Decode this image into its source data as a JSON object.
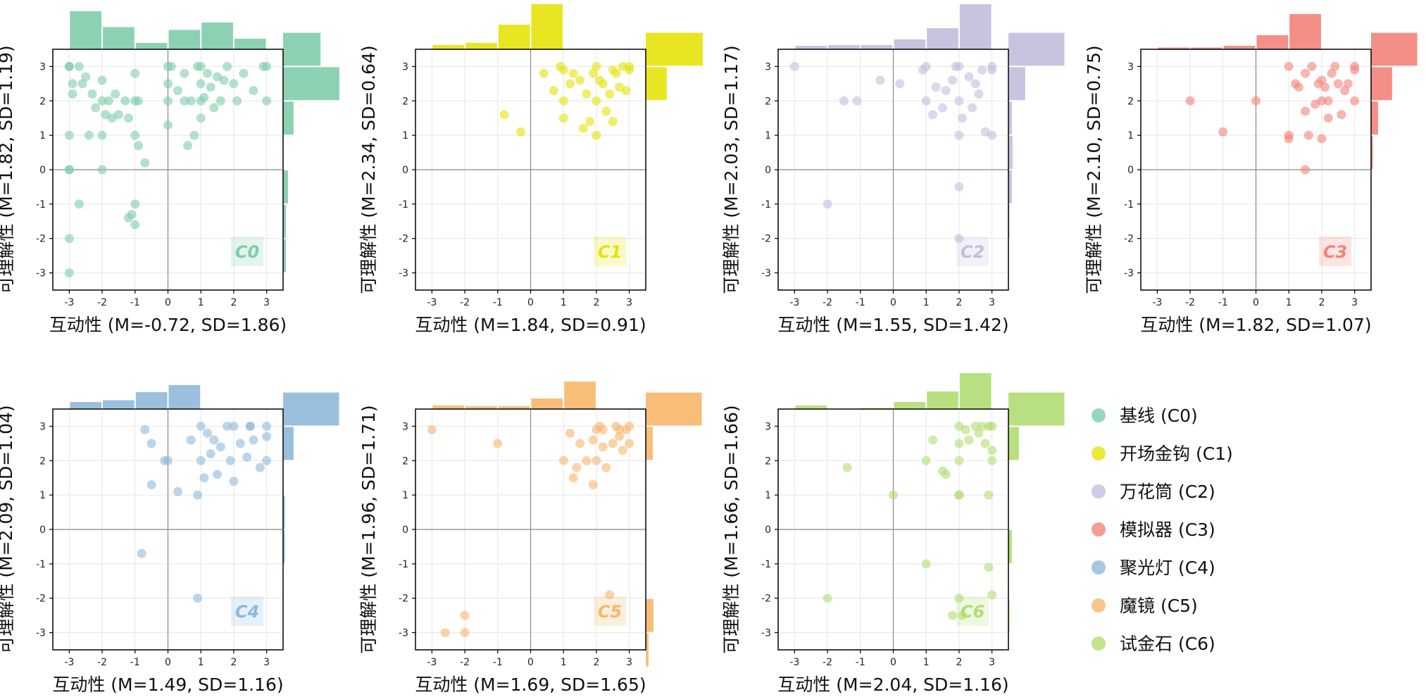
{
  "chart_data": {
    "type": "scatter",
    "xlim": [
      -3.5,
      3.5
    ],
    "ylim": [
      -3.5,
      3.5
    ],
    "ticks": [
      -3,
      -2,
      -1,
      0,
      1,
      2,
      3
    ],
    "grid": true,
    "legend_position": "right",
    "panels": [
      {
        "id": "C0",
        "color": "#7fcdaa",
        "xlabel": "互动性 (M=-0.72, SD=1.86)",
        "ylabel": "可理解性 (M=1.82, SD=1.19)",
        "points": [
          [
            -3,
            3
          ],
          [
            -3,
            3
          ],
          [
            -2.9,
            2.5
          ],
          [
            -2.9,
            2.2
          ],
          [
            -3,
            1
          ],
          [
            -3,
            0
          ],
          [
            -3,
            0
          ],
          [
            -3,
            -2
          ],
          [
            -3,
            -3
          ],
          [
            -2.7,
            -1
          ],
          [
            -2.7,
            3
          ],
          [
            -2.6,
            2.5
          ],
          [
            -2.5,
            2.7
          ],
          [
            -2.4,
            1
          ],
          [
            -2.3,
            2.2
          ],
          [
            -2.2,
            1.8
          ],
          [
            -2,
            2.6
          ],
          [
            -2,
            2
          ],
          [
            -2,
            1
          ],
          [
            -2,
            0
          ],
          [
            -1.9,
            1.6
          ],
          [
            -1.8,
            2
          ],
          [
            -1.7,
            1.5
          ],
          [
            -1.6,
            2.2
          ],
          [
            -1.5,
            1.6
          ],
          [
            -1.3,
            2
          ],
          [
            -1.2,
            1.5
          ],
          [
            -1.2,
            -1.4
          ],
          [
            -1.1,
            -1.3
          ],
          [
            -1,
            2
          ],
          [
            -1,
            1
          ],
          [
            -1,
            -1.6
          ],
          [
            -1,
            -1
          ],
          [
            -0.9,
            2
          ],
          [
            -0.9,
            0.7
          ],
          [
            -1,
            2.8
          ],
          [
            -0.7,
            0.2
          ],
          [
            0,
            3
          ],
          [
            0,
            2.5
          ],
          [
            0,
            2
          ],
          [
            0,
            1.3
          ],
          [
            0.1,
            3
          ],
          [
            0.3,
            2.3
          ],
          [
            0.5,
            2.8
          ],
          [
            0.6,
            0.7
          ],
          [
            0.7,
            2
          ],
          [
            0.8,
            1
          ],
          [
            1,
            3
          ],
          [
            1,
            2.5
          ],
          [
            1,
            2
          ],
          [
            1,
            1.5
          ],
          [
            1.1,
            2.1
          ],
          [
            1.2,
            2.8
          ],
          [
            1.3,
            2.4
          ],
          [
            1.4,
            1.8
          ],
          [
            1.6,
            2
          ],
          [
            1.7,
            2.6
          ],
          [
            1.8,
            3
          ],
          [
            2,
            2.5
          ],
          [
            2.1,
            2
          ],
          [
            2.3,
            2.8
          ],
          [
            2.6,
            2.3
          ],
          [
            2.9,
            3
          ],
          [
            3,
            3
          ],
          [
            3,
            2
          ],
          [
            1.5,
            2.7
          ],
          [
            0.5,
            2
          ],
          [
            0.9,
            3
          ]
        ],
        "hist_x": [
          0.108,
          0.063,
          0.018,
          0.055,
          0.076,
          0.03
        ],
        "hist_y": [
          0.0,
          0.008,
          0.008,
          0.014,
          0.0,
          0.03,
          0.161,
          0.107
        ]
      },
      {
        "id": "C1",
        "color": "#e5e30a",
        "xlabel": "互动性 (M=1.84, SD=0.91)",
        "ylabel": "可理解性 (M=2.34, SD=0.64)",
        "points": [
          [
            -0.8,
            1.6
          ],
          [
            -0.3,
            1.1
          ],
          [
            0.4,
            2.8
          ],
          [
            0.7,
            2.3
          ],
          [
            0.9,
            3
          ],
          [
            1,
            2.9
          ],
          [
            1,
            2
          ],
          [
            1,
            1.5
          ],
          [
            1.2,
            2.5
          ],
          [
            1.3,
            2.8
          ],
          [
            1.5,
            2.6
          ],
          [
            1.6,
            1.2
          ],
          [
            1.7,
            2.2
          ],
          [
            1.8,
            1.4
          ],
          [
            1.9,
            2.8
          ],
          [
            2,
            3
          ],
          [
            2,
            2
          ],
          [
            2,
            1
          ],
          [
            2.2,
            2.5
          ],
          [
            2.3,
            1.7
          ],
          [
            2.4,
            2.2
          ],
          [
            2.5,
            1.4
          ],
          [
            2.6,
            2.8
          ],
          [
            2.7,
            2.4
          ],
          [
            2.8,
            3
          ],
          [
            2.9,
            2.3
          ],
          [
            3,
            3
          ],
          [
            3,
            2.9
          ],
          [
            2.5,
            2.9
          ],
          [
            2.1,
            2.6
          ]
        ],
        "hist_x": [
          0.012,
          0.018,
          0.07,
          0.128,
          0.0,
          0.0
        ],
        "hist_y": [
          0.0,
          0.0,
          0.0,
          0.0,
          0.0,
          0.0,
          0.06,
          0.163
        ]
      },
      {
        "id": "C2",
        "color": "#c2bedd",
        "xlabel": "互动性 (M=1.55, SD=1.42)",
        "ylabel": "可理解性 (M=2.03, SD=1.17)",
        "points": [
          [
            -3,
            3
          ],
          [
            -2,
            -1
          ],
          [
            -1.5,
            2
          ],
          [
            -1.1,
            2
          ],
          [
            -0.4,
            2.6
          ],
          [
            0.2,
            2.5
          ],
          [
            0.9,
            2.9
          ],
          [
            1,
            3
          ],
          [
            1,
            2
          ],
          [
            1.2,
            1.6
          ],
          [
            1.3,
            2.4
          ],
          [
            1.5,
            1.8
          ],
          [
            1.6,
            2.3
          ],
          [
            1.8,
            2.6
          ],
          [
            1.9,
            3
          ],
          [
            2,
            3
          ],
          [
            2,
            2
          ],
          [
            2,
            1
          ],
          [
            2,
            -0.5
          ],
          [
            2,
            -2
          ],
          [
            2.1,
            1.5
          ],
          [
            2.3,
            2.7
          ],
          [
            2.4,
            1.8
          ],
          [
            2.6,
            2.2
          ],
          [
            2.7,
            2.9
          ],
          [
            2.8,
            1.1
          ],
          [
            3,
            3
          ],
          [
            3,
            2.9
          ],
          [
            3,
            1
          ],
          [
            2.5,
            2.5
          ]
        ],
        "hist_x": [
          0.01,
          0.012,
          0.012,
          0.028,
          0.06,
          0.128
        ],
        "hist_y": [
          0.0,
          0.0,
          0.003,
          0.01,
          0.012,
          0.01,
          0.048,
          0.16
        ]
      },
      {
        "id": "C3",
        "color": "#f2837a",
        "xlabel": "互动性 (M=1.82, SD=1.07)",
        "ylabel": "可理解性 (M=2.10, SD=0.75)",
        "points": [
          [
            -2,
            2
          ],
          [
            -1,
            1.1
          ],
          [
            0,
            2
          ],
          [
            1,
            3
          ],
          [
            1,
            1
          ],
          [
            1,
            0.9
          ],
          [
            1.2,
            2.5
          ],
          [
            1.3,
            2.4
          ],
          [
            1.5,
            1.7
          ],
          [
            1.5,
            0
          ],
          [
            1.5,
            2.8
          ],
          [
            1.7,
            3
          ],
          [
            1.8,
            1.9
          ],
          [
            1.9,
            2.5
          ],
          [
            2,
            2.6
          ],
          [
            2,
            2
          ],
          [
            2,
            0.9
          ],
          [
            2.1,
            2.4
          ],
          [
            2.2,
            2
          ],
          [
            2.3,
            2.8
          ],
          [
            2.4,
            3
          ],
          [
            2.5,
            2.5
          ],
          [
            2.6,
            1.6
          ],
          [
            2.7,
            2.3
          ],
          [
            2.8,
            2.5
          ],
          [
            3,
            3
          ],
          [
            3,
            2.9
          ],
          [
            3,
            2
          ],
          [
            1.6,
            1
          ],
          [
            2.2,
            1.5
          ]
        ],
        "hist_x": [
          0.005,
          0.005,
          0.01,
          0.04,
          0.1,
          0.0
        ],
        "hist_y": [
          0.0,
          0.0,
          0.0,
          0.0,
          0.005,
          0.02,
          0.06,
          0.132
        ]
      },
      {
        "id": "C4",
        "color": "#8fb9da",
        "xlabel": "互动性 (M=1.49, SD=1.16)",
        "ylabel": "可理解性 (M=2.09, SD=1.04)",
        "points": [
          [
            -0.8,
            -0.7
          ],
          [
            -0.7,
            2.9
          ],
          [
            -0.5,
            2.5
          ],
          [
            -0.5,
            1.3
          ],
          [
            -0.1,
            2
          ],
          [
            0,
            2
          ],
          [
            0.3,
            1.1
          ],
          [
            0.7,
            2.6
          ],
          [
            0.9,
            1
          ],
          [
            0.9,
            -2
          ],
          [
            1,
            3
          ],
          [
            1,
            2
          ],
          [
            1.1,
            1.5
          ],
          [
            1.2,
            2.8
          ],
          [
            1.3,
            2.2
          ],
          [
            1.4,
            2.6
          ],
          [
            1.5,
            1.6
          ],
          [
            1.6,
            2.4
          ],
          [
            1.8,
            3
          ],
          [
            1.9,
            2
          ],
          [
            2,
            3
          ],
          [
            2,
            1.4
          ],
          [
            2.2,
            2.5
          ],
          [
            2.4,
            2.1
          ],
          [
            2.5,
            3
          ],
          [
            2.6,
            2.6
          ],
          [
            2.8,
            1.8
          ],
          [
            3,
            3
          ],
          [
            3,
            2.7
          ],
          [
            3,
            2
          ],
          [
            2.5,
            3
          ]
        ],
        "hist_x": [
          0.02,
          0.025,
          0.048,
          0.068,
          0.0,
          0.0
        ],
        "hist_y": [
          0.0,
          0.0,
          0.0,
          0.005,
          0.005,
          0.0,
          0.03,
          0.16
        ]
      },
      {
        "id": "C5",
        "color": "#f8b66b",
        "xlabel": "互动性 (M=1.69, SD=1.65)",
        "ylabel": "可理解性 (M=1.96, SD=1.71)",
        "points": [
          [
            -3,
            2.9
          ],
          [
            -2.6,
            -3
          ],
          [
            -2,
            -3
          ],
          [
            -2,
            -2.5
          ],
          [
            -1,
            2.5
          ],
          [
            1,
            2
          ],
          [
            1.2,
            2.8
          ],
          [
            1.3,
            1.5
          ],
          [
            1.4,
            1.8
          ],
          [
            1.5,
            2.5
          ],
          [
            1.7,
            2
          ],
          [
            1.9,
            2.6
          ],
          [
            1.9,
            1.3
          ],
          [
            2,
            2.9
          ],
          [
            2,
            2
          ],
          [
            2.1,
            3
          ],
          [
            2.2,
            2.4
          ],
          [
            2.3,
            1.8
          ],
          [
            2.4,
            -1.9
          ],
          [
            2.5,
            2.5
          ],
          [
            2.6,
            3
          ],
          [
            2.7,
            2.7
          ],
          [
            2.8,
            2.3
          ],
          [
            2.9,
            2.9
          ],
          [
            3,
            3
          ],
          [
            3,
            2.5
          ],
          [
            2.2,
            2.9
          ],
          [
            2.7,
            2.9
          ]
        ],
        "hist_x": [
          0.01,
          0.008,
          0.008,
          0.03,
          0.078,
          0.0
        ],
        "hist_y": [
          0.008,
          0.022,
          0.0,
          0.0,
          0.0,
          0.0,
          0.02,
          0.16
        ]
      },
      {
        "id": "C6",
        "color": "#b1dd72",
        "xlabel": "互动性 (M=2.04, SD=1.16)",
        "ylabel": "可理解性 (M=1.66, SD=1.66)",
        "points": [
          [
            -2,
            -2
          ],
          [
            -1.4,
            1.8
          ],
          [
            0,
            1
          ],
          [
            1,
            2
          ],
          [
            1,
            -1
          ],
          [
            1.2,
            2.6
          ],
          [
            1.5,
            1.7
          ],
          [
            1.6,
            1.6
          ],
          [
            1.8,
            -2.5
          ],
          [
            2,
            3
          ],
          [
            2,
            2.5
          ],
          [
            2,
            2
          ],
          [
            2,
            1
          ],
          [
            2,
            1
          ],
          [
            2,
            -2
          ],
          [
            2.1,
            -2.5
          ],
          [
            2.3,
            2.6
          ],
          [
            2.5,
            3
          ],
          [
            2.6,
            2.8
          ],
          [
            2.7,
            3
          ],
          [
            2.8,
            2.5
          ],
          [
            2.9,
            3
          ],
          [
            3,
            3
          ],
          [
            3,
            2.3
          ],
          [
            3,
            2
          ],
          [
            2.9,
            1
          ],
          [
            2.9,
            -1.1
          ],
          [
            3,
            -1.9
          ],
          [
            2.2,
            2.9
          ]
        ],
        "hist_x": [
          0.01,
          0.0,
          0.003,
          0.02,
          0.05,
          0.102
        ],
        "hist_y": [
          0.0,
          0.003,
          0.0,
          0.01,
          0.0,
          0.0,
          0.03,
          0.16
        ]
      }
    ],
    "legend": [
      {
        "label": "基线 (C0)",
        "color": "#7fcdaa"
      },
      {
        "label": "开场金钩 (C1)",
        "color": "#e5e30a"
      },
      {
        "label": "万花筒 (C2)",
        "color": "#c2bedd"
      },
      {
        "label": "模拟器 (C3)",
        "color": "#f2837a"
      },
      {
        "label": "聚光灯 (C4)",
        "color": "#8fb9da"
      },
      {
        "label": "魔镜 (C5)",
        "color": "#f8b66b"
      },
      {
        "label": "试金石 (C6)",
        "color": "#b1dd72"
      }
    ]
  }
}
